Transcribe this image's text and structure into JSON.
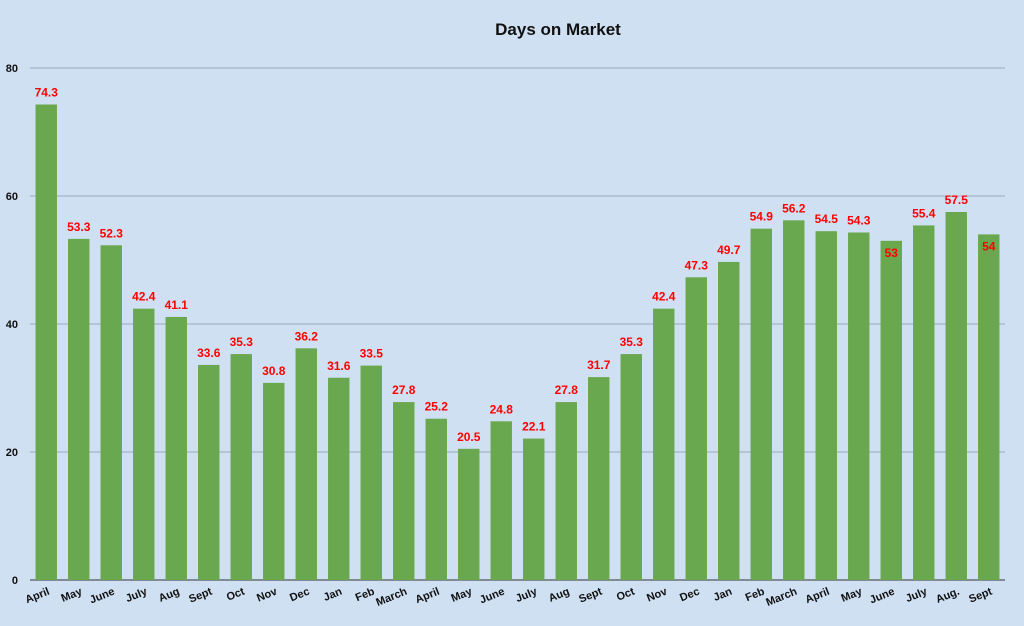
{
  "chart_data": {
    "type": "bar",
    "title": "Days on Market",
    "xlabel": "",
    "ylabel": "",
    "ylim": [
      0,
      80
    ],
    "yticks": [
      "0",
      "20",
      "40",
      "60",
      "80"
    ],
    "grid": true,
    "categories": [
      "April",
      "May",
      "June",
      "July",
      "Aug",
      "Sept",
      "Oct",
      "Nov",
      "Dec",
      "Jan",
      "Feb",
      "March",
      "April",
      "May",
      "June",
      "July",
      "Aug",
      "Sept",
      "Oct",
      "Nov",
      "Dec",
      "Jan",
      "Feb",
      "March",
      "April",
      "May",
      "June",
      "July",
      "Aug.",
      "Sept"
    ],
    "values": [
      74.3,
      53.3,
      52.3,
      42.4,
      41.1,
      33.6,
      35.3,
      30.8,
      36.2,
      31.6,
      33.5,
      27.8,
      25.2,
      20.5,
      24.8,
      22.1,
      27.8,
      31.7,
      35.3,
      42.4,
      47.3,
      49.7,
      54.9,
      56.2,
      54.5,
      54.3,
      53,
      55.4,
      57.5,
      54
    ],
    "data_labels": [
      "74.3",
      "53.3",
      "52.3",
      "42.4",
      "41.1",
      "33.6",
      "35.3",
      "30.8",
      "36.2",
      "31.6",
      "33.5",
      "27.8",
      "25.2",
      "20.5",
      "24.8",
      "22.1",
      "27.8",
      "31.7",
      "35.3",
      "42.4",
      "47.3",
      "49.7",
      "54.9",
      "56.2",
      "54.5",
      "54.3",
      "53",
      "55.4",
      "57.5",
      "54"
    ],
    "colors": {
      "bar": "#6aa84f",
      "label": "#ff0000",
      "grid": "#9aaabb",
      "background": "#cfe0f3"
    }
  }
}
